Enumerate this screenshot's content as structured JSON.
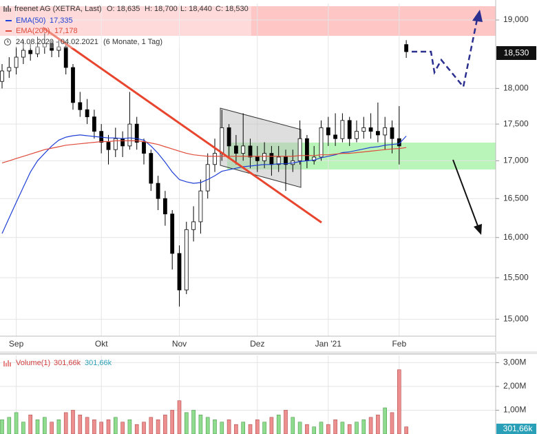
{
  "chart_data": [
    {
      "type": "candlestick",
      "title": "freenet AG (XETRA, Last)",
      "ohlc_labels": [
        "O: 18,635",
        "H: 18,700",
        "L: 18,440",
        "C: 18,530"
      ],
      "subtitle": "24.08.2020 - 04.02.2021",
      "period": "(6 Monate, 1 Tag)",
      "last_label": "18,530",
      "categories": [
        null,
        null,
        "Sep",
        null,
        null,
        null,
        null,
        null,
        null,
        null,
        null,
        null,
        null,
        null,
        "Okt",
        null,
        null,
        null,
        null,
        null,
        null,
        null,
        null,
        null,
        null,
        "Nov",
        null,
        null,
        null,
        null,
        null,
        null,
        null,
        null,
        null,
        null,
        "Dez",
        null,
        null,
        null,
        null,
        null,
        null,
        null,
        null,
        null,
        "Jan '21",
        null,
        null,
        null,
        null,
        null,
        null,
        null,
        null,
        null,
        "Feb",
        null
      ],
      "open": [
        18100,
        18250,
        18300,
        18450,
        18550,
        18500,
        18600,
        18650,
        18550,
        18600,
        18300,
        17800,
        17700,
        17600,
        17400,
        17250,
        17150,
        17300,
        17200,
        17500,
        17250,
        17100,
        16700,
        16500,
        16300,
        15800,
        15350,
        16100,
        16200,
        16600,
        16950,
        17100,
        17450,
        17200,
        17100,
        17200,
        17050,
        17000,
        17100,
        16950,
        17050,
        16950,
        17000,
        17300,
        17000,
        17050,
        17450,
        17350,
        17300,
        17550,
        17300,
        17400,
        17450,
        17400,
        17350,
        17450,
        17300,
        18635
      ],
      "high": [
        18350,
        18450,
        18600,
        18700,
        18650,
        18750,
        18800,
        18700,
        18700,
        18650,
        18350,
        17950,
        17850,
        17700,
        17500,
        17350,
        17450,
        17400,
        17950,
        17600,
        17300,
        17150,
        16800,
        16600,
        16350,
        15900,
        16200,
        16400,
        16750,
        17100,
        17300,
        17700,
        17500,
        17350,
        17650,
        17300,
        17200,
        17250,
        17200,
        17200,
        17150,
        17150,
        17550,
        17350,
        17200,
        17550,
        17600,
        17650,
        17650,
        17600,
        17550,
        17600,
        17650,
        17800,
        17600,
        17550,
        17750,
        18700
      ],
      "low": [
        18000,
        18150,
        18200,
        18350,
        18400,
        18450,
        18500,
        18450,
        18450,
        18200,
        17700,
        17600,
        17500,
        17300,
        17100,
        16950,
        17050,
        17050,
        17150,
        17150,
        16950,
        16600,
        16350,
        16150,
        15600,
        15150,
        15300,
        15950,
        16050,
        16500,
        16850,
        17000,
        17050,
        16950,
        17000,
        16900,
        16850,
        16900,
        16800,
        16850,
        16600,
        16850,
        16950,
        16900,
        16950,
        17000,
        17200,
        17200,
        17250,
        17200,
        17250,
        17300,
        17300,
        17250,
        17150,
        17100,
        16950,
        18440
      ],
      "close": [
        18250,
        18300,
        18450,
        18550,
        18500,
        18600,
        18650,
        18550,
        18600,
        18300,
        17800,
        17700,
        17600,
        17400,
        17250,
        17150,
        17300,
        17200,
        17500,
        17250,
        17100,
        16700,
        16500,
        16300,
        15800,
        15350,
        16100,
        16200,
        16600,
        16950,
        17100,
        17450,
        17200,
        17100,
        17200,
        17050,
        17000,
        17100,
        16950,
        17050,
        16950,
        17000,
        17300,
        17000,
        17050,
        17450,
        17350,
        17300,
        17550,
        17300,
        17400,
        17450,
        17400,
        17350,
        17450,
        17300,
        17200,
        18530
      ],
      "up_color": "#ffffff",
      "down_color": "#000000",
      "series": [
        {
          "name": "EMA(50)",
          "last_label": "17,335",
          "color": "#1f3fd6",
          "values": [
            16050,
            16250,
            16450,
            16650,
            16850,
            17000,
            17100,
            17200,
            17280,
            17320,
            17340,
            17350,
            17340,
            17330,
            17320,
            17310,
            17310,
            17300,
            17310,
            17300,
            17280,
            17200,
            17100,
            16980,
            16850,
            16750,
            16720,
            16700,
            16710,
            16750,
            16800,
            16860,
            16880,
            16900,
            16920,
            16930,
            16940,
            16950,
            16950,
            16960,
            16960,
            16970,
            16990,
            17000,
            17010,
            17040,
            17060,
            17080,
            17110,
            17120,
            17140,
            17160,
            17180,
            17190,
            17210,
            17220,
            17230,
            17335
          ]
        },
        {
          "name": "EMA(200)",
          "last_label": "17,178",
          "color": "#e04a3a",
          "values": [
            16970,
            17000,
            17030,
            17060,
            17090,
            17120,
            17150,
            17170,
            17190,
            17210,
            17220,
            17230,
            17240,
            17250,
            17260,
            17260,
            17270,
            17270,
            17270,
            17270,
            17260,
            17240,
            17220,
            17190,
            17160,
            17130,
            17100,
            17080,
            17070,
            17060,
            17060,
            17060,
            17060,
            17060,
            17060,
            17060,
            17060,
            17060,
            17060,
            17060,
            17060,
            17060,
            17070,
            17070,
            17070,
            17080,
            17080,
            17090,
            17100,
            17100,
            17110,
            17120,
            17130,
            17140,
            17150,
            17160,
            17165,
            17178
          ]
        }
      ],
      "ylim": [
        14800,
        19250
      ],
      "log_scale": true,
      "grid": true,
      "yticks": [
        {
          "value": 15000,
          "label": "15,000"
        },
        {
          "value": 15500,
          "label": "15,500"
        },
        {
          "value": 16000,
          "label": "16,000"
        },
        {
          "value": 16500,
          "label": "16,500"
        },
        {
          "value": 17000,
          "label": "17,000"
        },
        {
          "value": 17500,
          "label": "17,500"
        },
        {
          "value": 18000,
          "label": "18,000"
        },
        {
          "value": 19000,
          "label": "19,000"
        }
      ]
    },
    {
      "type": "bar",
      "name": "Volume(1)",
      "last_label": "301,66k",
      "up_color": "#8fdc8f",
      "down_color": "#ee8f8f",
      "average_color": "#2a9fb8",
      "values": [
        600000,
        700000,
        900000,
        500000,
        800000,
        600000,
        700000,
        500000,
        600000,
        900000,
        1000000,
        800000,
        700000,
        600000,
        500000,
        600000,
        700000,
        500000,
        600000,
        400000,
        500000,
        700000,
        600000,
        800000,
        1000000,
        1400000,
        900000,
        1000000,
        800000,
        700000,
        600000,
        500000,
        600000,
        400000,
        500000,
        400000,
        600000,
        500000,
        700000,
        800000,
        1000000,
        700000,
        500000,
        400000,
        300000,
        500000,
        400000,
        600000,
        500000,
        400000,
        500000,
        600000,
        700000,
        800000,
        1100000,
        900000,
        2700000,
        301660
      ],
      "ylim": [
        0,
        3300000
      ],
      "grid": true,
      "yticks": [
        {
          "value": 1000000,
          "label": "1,00M"
        },
        {
          "value": 2000000,
          "label": "2,00M"
        },
        {
          "value": 3000000,
          "label": "3,00M"
        }
      ]
    }
  ]
}
